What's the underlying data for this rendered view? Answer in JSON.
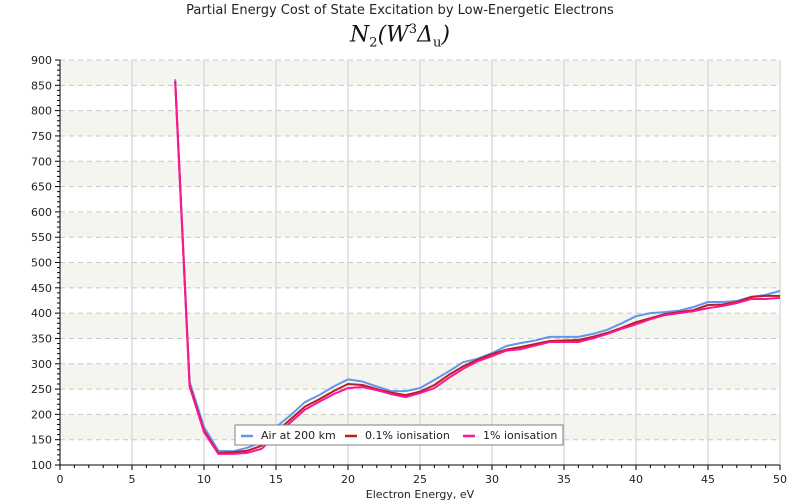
{
  "chart_data": {
    "type": "line",
    "title": "Partial Energy Cost of State Excitation by Low-Energetic Electrons",
    "subtitle": {
      "base": "N",
      "sub1": "2",
      "open": "(",
      "state": "W",
      "sup": "3",
      "term": "Δ",
      "sub2": "u",
      "close": ")"
    },
    "xlabel": "Electron Energy, eV",
    "ylabel": "",
    "xlim": [
      0,
      50
    ],
    "ylim": [
      100,
      900
    ],
    "xticks": [
      0,
      5,
      10,
      15,
      20,
      25,
      30,
      35,
      40,
      45,
      50
    ],
    "yticks": [
      100,
      150,
      200,
      250,
      300,
      350,
      400,
      450,
      500,
      550,
      600,
      650,
      700,
      750,
      800,
      850,
      900
    ],
    "grid": true,
    "legend_position": "bottom-center",
    "x": [
      8,
      9,
      10,
      11,
      12,
      13,
      14,
      15,
      16,
      17,
      18,
      19,
      20,
      21,
      22,
      23,
      24,
      25,
      26,
      27,
      28,
      29,
      30,
      31,
      32,
      33,
      34,
      35,
      36,
      37,
      38,
      39,
      40,
      41,
      42,
      43,
      44,
      45,
      46,
      47,
      48,
      49,
      50
    ],
    "series": [
      {
        "name": "Air at 200 km",
        "color": "#6495ed",
        "values": [
          862,
          265,
          175,
          128,
          127,
          134,
          145,
          175,
          198,
          224,
          238,
          255,
          269,
          265,
          255,
          246,
          246,
          252,
          268,
          285,
          303,
          310,
          321,
          335,
          341,
          346,
          353,
          353,
          353,
          359,
          367,
          380,
          394,
          400,
          402,
          405,
          412,
          422,
          422,
          424,
          432,
          436,
          444
        ]
      },
      {
        "name": "0.1% ionisation",
        "color": "#b22222",
        "values": [
          858,
          258,
          168,
          124,
          125,
          128,
          138,
          165,
          190,
          215,
          230,
          246,
          260,
          258,
          250,
          243,
          238,
          245,
          258,
          278,
          295,
          308,
          319,
          328,
          333,
          339,
          345,
          346,
          347,
          353,
          361,
          371,
          382,
          390,
          398,
          402,
          406,
          416,
          417,
          422,
          432,
          434,
          434
        ]
      },
      {
        "name": "1% ionisation",
        "color": "#ff1493",
        "values": [
          856,
          255,
          165,
          122,
          122,
          124,
          132,
          158,
          184,
          209,
          225,
          240,
          252,
          254,
          248,
          240,
          234,
          242,
          252,
          272,
          290,
          305,
          315,
          326,
          329,
          336,
          343,
          343,
          343,
          350,
          359,
          369,
          378,
          388,
          396,
          400,
          404,
          410,
          414,
          420,
          428,
          428,
          430
        ]
      }
    ]
  }
}
